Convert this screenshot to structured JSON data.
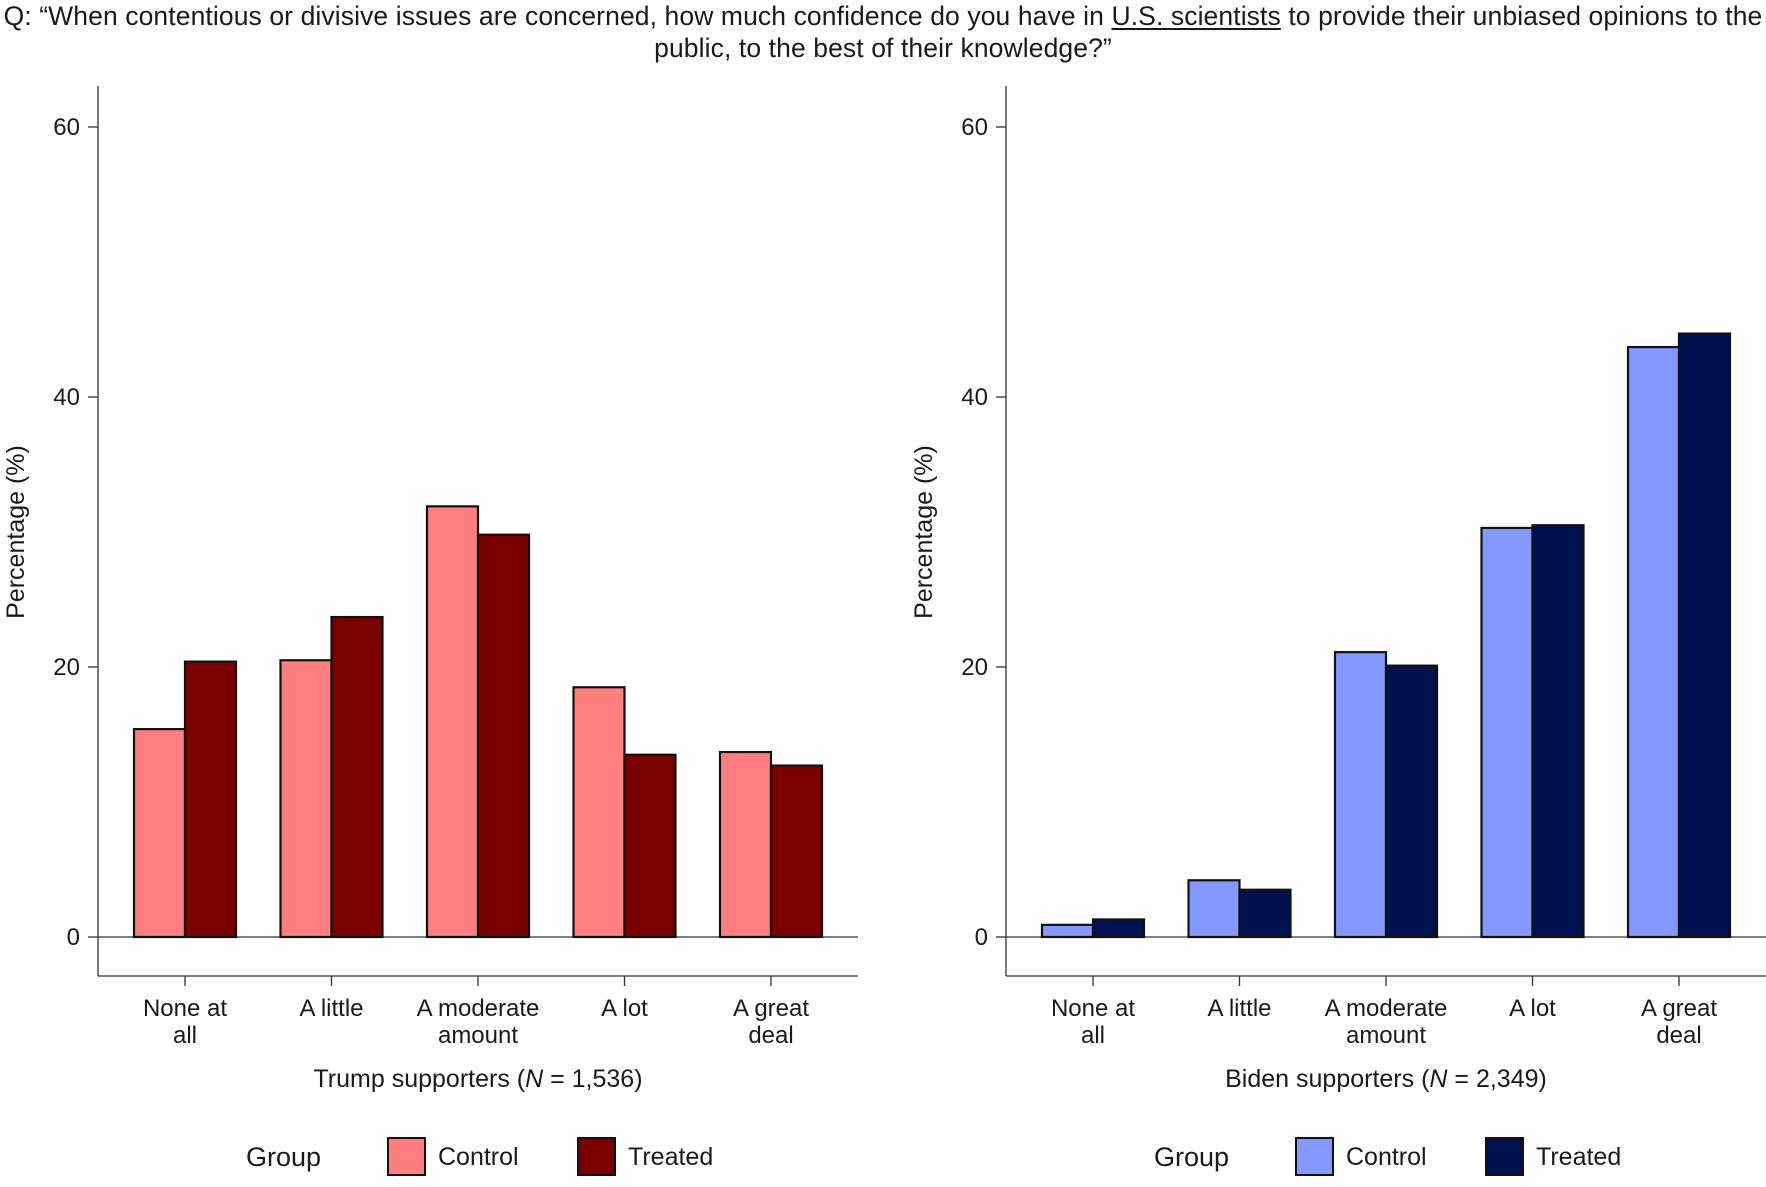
{
  "question": {
    "prefix": "Q: “When contentious or divisive issues are concerned, how much confidence do you have in ",
    "underlined": "U.S. scientists",
    "suffix": " to provide their unbiased opinions to the public, to the best of their knowledge?”"
  },
  "chart_data": [
    {
      "type": "bar",
      "title": "",
      "categories": [
        [
          "None at",
          "all"
        ],
        [
          "A little"
        ],
        [
          "A moderate",
          "amount"
        ],
        [
          "A lot"
        ],
        [
          "A great",
          "deal"
        ]
      ],
      "xlabel": {
        "prefix": "Trump supporters (",
        "italic": "N",
        "suffix": " = 1,536)"
      },
      "ylabel": "Percentage (%)",
      "ylim": [
        0,
        60
      ],
      "yticks": [
        0,
        20,
        40,
        60
      ],
      "grid": false,
      "legend": {
        "title": "Group",
        "position": "bottom"
      },
      "series": [
        {
          "name": "Control",
          "color": "#FF7F80",
          "values": [
            15.4,
            20.5,
            31.9,
            18.5,
            13.7
          ]
        },
        {
          "name": "Treated",
          "color": "#7A0000",
          "values": [
            20.4,
            23.7,
            29.8,
            13.5,
            12.7
          ]
        }
      ]
    },
    {
      "type": "bar",
      "title": "",
      "categories": [
        [
          "None at",
          "all"
        ],
        [
          "A little"
        ],
        [
          "A moderate",
          "amount"
        ],
        [
          "A lot"
        ],
        [
          "A great",
          "deal"
        ]
      ],
      "xlabel": {
        "prefix": "Biden supporters (",
        "italic": "N",
        "suffix": " = 2,349)"
      },
      "ylabel": "Percentage (%)",
      "ylim": [
        0,
        60
      ],
      "yticks": [
        0,
        20,
        40,
        60
      ],
      "grid": false,
      "legend": {
        "title": "Group",
        "position": "bottom"
      },
      "series": [
        {
          "name": "Control",
          "color": "#8399FF",
          "values": [
            0.9,
            4.2,
            21.1,
            30.3,
            43.7
          ]
        },
        {
          "name": "Treated",
          "color": "#00114F",
          "values": [
            1.3,
            3.5,
            20.1,
            30.5,
            44.7
          ]
        }
      ]
    }
  ]
}
